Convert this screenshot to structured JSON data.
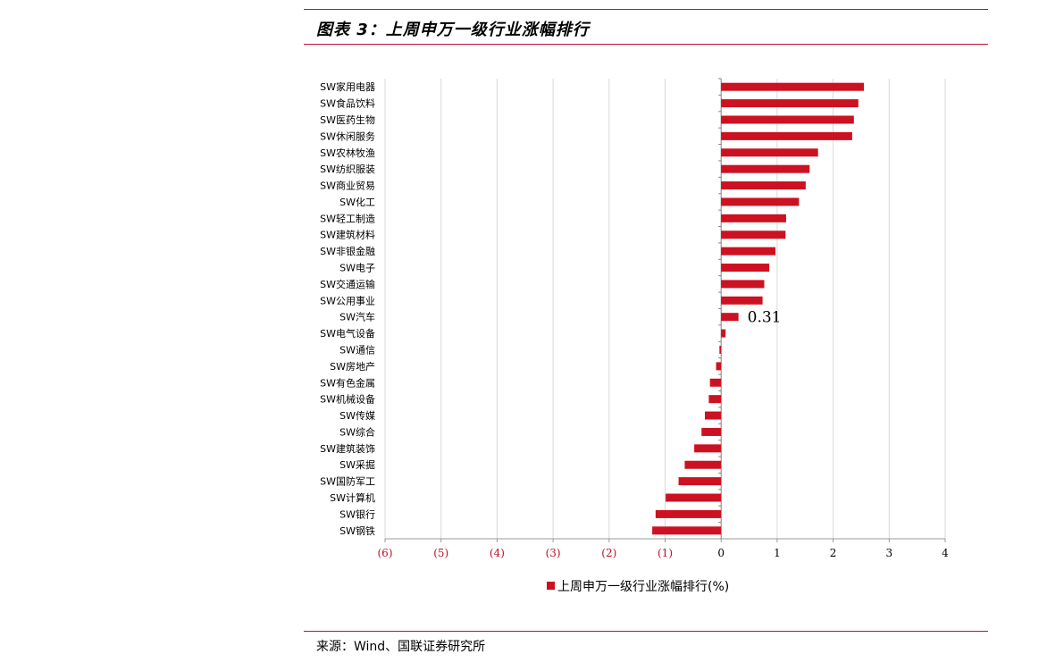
{
  "header": {
    "title": "图表 3：上周申万一级行业涨幅排行"
  },
  "footer": {
    "source": "来源：Wind、国联证券研究所"
  },
  "colors": {
    "accent": "#c0102a",
    "bar": "#cc1122",
    "grid": "#d9d9d9"
  },
  "chart_data": {
    "type": "bar",
    "orientation": "horizontal",
    "categories": [
      "SW家用电器",
      "SW食品饮料",
      "SW医药生物",
      "SW休闲服务",
      "SW农林牧渔",
      "SW纺织服装",
      "SW商业贸易",
      "SW化工",
      "SW轻工制造",
      "SW建筑材料",
      "SW非银金融",
      "SW电子",
      "SW交通运输",
      "SW公用事业",
      "SW汽车",
      "SW电气设备",
      "SW通信",
      "SW房地产",
      "SW有色金属",
      "SW机械设备",
      "SW传媒",
      "SW综合",
      "SW建筑装饰",
      "SW采掘",
      "SW国防军工",
      "SW计算机",
      "SW银行",
      "SW钢铁"
    ],
    "series": [
      {
        "name": "上周申万一级行业涨幅排行(%)",
        "values": [
          2.55,
          2.45,
          2.37,
          2.34,
          1.73,
          1.58,
          1.51,
          1.39,
          1.16,
          1.15,
          0.97,
          0.86,
          0.77,
          0.74,
          0.31,
          0.08,
          -0.03,
          -0.09,
          -0.2,
          -0.22,
          -0.29,
          -0.35,
          -0.48,
          -0.65,
          -0.76,
          -0.99,
          -1.17,
          -1.23
        ]
      }
    ],
    "xlim": [
      -6,
      4
    ],
    "xticks": [
      -6,
      -5,
      -4,
      -3,
      -2,
      -1,
      0,
      1,
      2,
      3,
      4
    ],
    "xtick_labels": [
      "(6)",
      "(5)",
      "(4)",
      "(3)",
      "(2)",
      "(1)",
      "0",
      "1",
      "2",
      "3",
      "4"
    ],
    "annotations": [
      {
        "category": "SW汽车",
        "text": "0.31"
      }
    ],
    "grid": "vertical",
    "legend": "bottom-center"
  }
}
